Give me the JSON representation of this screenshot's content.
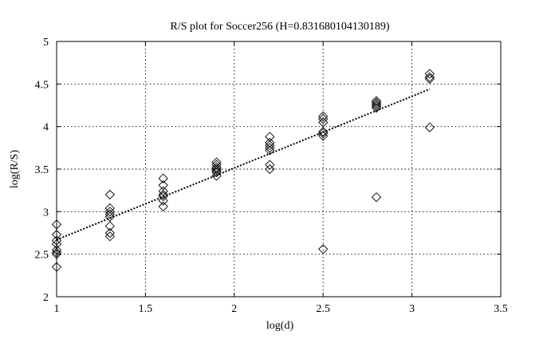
{
  "chart_data": {
    "type": "scatter",
    "title": "R/S plot for Soccer256 (H=0.831680104130189)",
    "xlabel": "log(d)",
    "ylabel": "log(R/S)",
    "xlim": [
      1,
      3.5
    ],
    "ylim": [
      2,
      5
    ],
    "xticks": [
      1,
      1.5,
      2,
      2.5,
      3,
      3.5
    ],
    "xtick_labels": [
      "1",
      "1.5",
      "2",
      "2.5",
      "3",
      "3.5"
    ],
    "yticks": [
      2,
      2.5,
      3,
      3.5,
      4,
      4.5,
      5
    ],
    "ytick_labels": [
      "2",
      "2.5",
      "3",
      "3.5",
      "4",
      "4.5",
      "5"
    ],
    "grid": true,
    "marker": "diamond",
    "series": [
      {
        "points": [
          [
            1.0,
            2.85
          ],
          [
            1.0,
            2.73
          ],
          [
            1.0,
            2.66
          ],
          [
            1.0,
            2.62
          ],
          [
            1.0,
            2.55
          ],
          [
            1.0,
            2.52
          ],
          [
            1.0,
            2.5
          ],
          [
            1.0,
            2.35
          ],
          [
            1.3,
            3.2
          ],
          [
            1.3,
            3.04
          ],
          [
            1.3,
            3.0
          ],
          [
            1.3,
            2.97
          ],
          [
            1.3,
            2.94
          ],
          [
            1.3,
            2.83
          ],
          [
            1.3,
            2.75
          ],
          [
            1.3,
            2.71
          ],
          [
            1.6,
            3.39
          ],
          [
            1.6,
            3.31
          ],
          [
            1.6,
            3.24
          ],
          [
            1.6,
            3.2
          ],
          [
            1.6,
            3.18
          ],
          [
            1.6,
            3.13
          ],
          [
            1.6,
            3.06
          ],
          [
            1.9,
            3.58
          ],
          [
            1.9,
            3.55
          ],
          [
            1.9,
            3.52
          ],
          [
            1.9,
            3.5
          ],
          [
            1.9,
            3.48
          ],
          [
            1.9,
            3.46
          ],
          [
            1.9,
            3.42
          ],
          [
            2.2,
            3.88
          ],
          [
            2.2,
            3.81
          ],
          [
            2.2,
            3.78
          ],
          [
            2.2,
            3.75
          ],
          [
            2.2,
            3.72
          ],
          [
            2.2,
            3.55
          ],
          [
            2.2,
            3.5
          ],
          [
            2.5,
            4.12
          ],
          [
            2.5,
            4.09
          ],
          [
            2.5,
            4.05
          ],
          [
            2.5,
            3.94
          ],
          [
            2.5,
            3.92
          ],
          [
            2.5,
            3.89
          ],
          [
            2.5,
            2.56
          ],
          [
            2.8,
            4.3
          ],
          [
            2.8,
            4.28
          ],
          [
            2.8,
            4.26
          ],
          [
            2.8,
            4.24
          ],
          [
            2.8,
            4.22
          ],
          [
            2.8,
            3.17
          ],
          [
            3.1,
            4.62
          ],
          [
            3.1,
            4.58
          ],
          [
            3.1,
            4.56
          ],
          [
            3.1,
            3.99
          ]
        ]
      }
    ],
    "fit_line": {
      "style": "dotted",
      "x": [
        1.0,
        3.1
      ],
      "y": [
        2.67,
        4.44
      ]
    }
  }
}
